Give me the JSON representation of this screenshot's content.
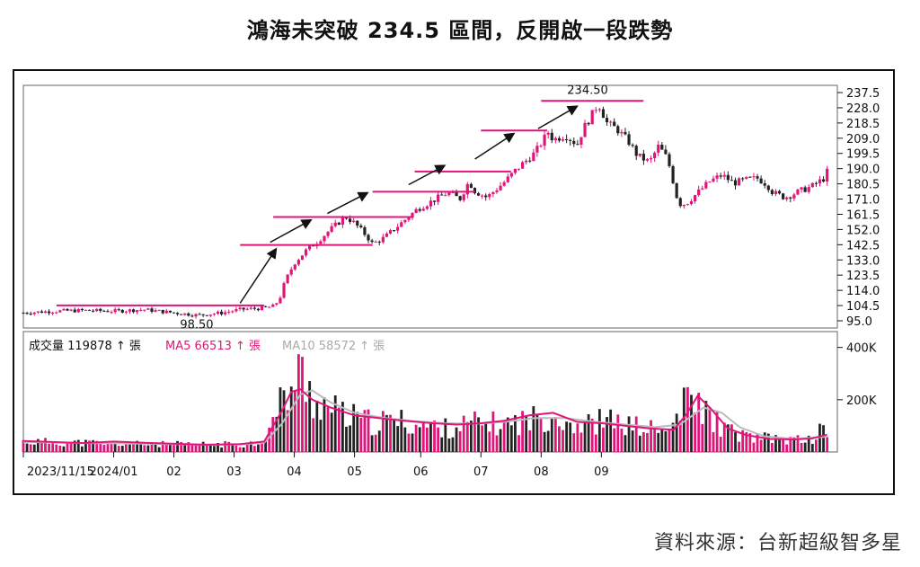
{
  "title": "鴻海未突破 234.5 區間，反開啟一段跌勢",
  "source": "資料來源：台新超級智多星",
  "colors": {
    "up": "#e0157a",
    "down": "#222222",
    "ma5": "#e0157a",
    "ma10": "#bbbbbb",
    "frame": "#111111"
  },
  "chart_data": {
    "type": "candlestick+bar",
    "price_panel": {
      "y_ticks": [
        237.5,
        228.0,
        218.5,
        209.0,
        199.5,
        190.0,
        180.5,
        171.0,
        161.5,
        152.0,
        142.5,
        133.0,
        123.5,
        114.0,
        104.5,
        95.0
      ],
      "ylim": [
        90.5,
        242
      ],
      "annotations": {
        "high_label": "234.50",
        "low_label": "98.50"
      },
      "ranges": [
        {
          "from_month": 0.55,
          "to_month": 4.0,
          "value": 104.6
        },
        {
          "from_month": 3.6,
          "to_month": 5.8,
          "value": 142.3
        },
        {
          "from_month": 4.15,
          "to_month": 6.45,
          "value": 159.8
        },
        {
          "from_month": 5.8,
          "to_month": 7.5,
          "value": 175.6
        },
        {
          "from_month": 6.5,
          "to_month": 8.1,
          "value": 188.2
        },
        {
          "from_month": 7.6,
          "to_month": 8.7,
          "value": 213.8
        },
        {
          "from_month": 8.6,
          "to_month": 10.3,
          "value": 232.3
        }
      ],
      "arrows": [
        {
          "from": [
            3.6,
            106
          ],
          "to": [
            4.2,
            140
          ]
        },
        {
          "from": [
            4.1,
            144
          ],
          "to": [
            4.78,
            158
          ]
        },
        {
          "from": [
            5.05,
            162
          ],
          "to": [
            5.72,
            175
          ]
        },
        {
          "from": [
            6.4,
            180
          ],
          "to": [
            7.0,
            192
          ]
        },
        {
          "from": [
            7.5,
            196
          ],
          "to": [
            8.15,
            212
          ]
        },
        {
          "from": [
            8.55,
            215
          ],
          "to": [
            9.2,
            229
          ]
        }
      ],
      "price_path": [
        [
          0,
          100
        ],
        [
          0.5,
          101
        ],
        [
          1.0,
          101.5
        ],
        [
          1.5,
          101
        ],
        [
          2.0,
          102
        ],
        [
          2.5,
          100
        ],
        [
          2.9,
          98.5
        ],
        [
          3.3,
          100
        ],
        [
          3.6,
          102
        ],
        [
          4.0,
          103
        ],
        [
          4.15,
          104
        ],
        [
          4.25,
          108
        ],
        [
          4.35,
          120
        ],
        [
          4.5,
          131
        ],
        [
          4.7,
          139
        ],
        [
          4.9,
          145
        ],
        [
          5.1,
          152
        ],
        [
          5.35,
          160
        ],
        [
          5.5,
          156
        ],
        [
          5.7,
          148
        ],
        [
          5.8,
          143
        ],
        [
          6.0,
          147
        ],
        [
          6.15,
          152
        ],
        [
          6.4,
          160
        ],
        [
          6.55,
          165
        ],
        [
          6.8,
          170
        ],
        [
          7.05,
          175
        ],
        [
          7.25,
          171
        ],
        [
          7.4,
          182
        ],
        [
          7.5,
          176
        ],
        [
          7.7,
          172
        ],
        [
          8.0,
          182
        ],
        [
          8.2,
          190
        ],
        [
          8.5,
          200
        ],
        [
          8.72,
          213
        ],
        [
          8.8,
          208
        ],
        [
          9.0,
          211
        ],
        [
          9.2,
          205
        ],
        [
          9.3,
          215
        ],
        [
          9.45,
          224
        ],
        [
          9.55,
          231
        ],
        [
          9.7,
          218
        ],
        [
          9.85,
          215
        ],
        [
          10.05,
          207
        ],
        [
          10.2,
          198
        ],
        [
          10.4,
          194
        ],
        [
          10.55,
          204
        ],
        [
          10.7,
          196
        ],
        [
          10.78,
          184
        ],
        [
          10.88,
          168
        ],
        [
          11.0,
          168
        ],
        [
          11.2,
          175
        ],
        [
          11.4,
          182
        ],
        [
          11.6,
          186
        ],
        [
          11.8,
          181
        ],
        [
          12.0,
          183
        ],
        [
          12.2,
          184
        ],
        [
          12.35,
          180
        ],
        [
          12.45,
          175
        ],
        [
          12.65,
          172
        ],
        [
          12.9,
          176
        ],
        [
          13.1,
          179
        ],
        [
          13.3,
          184
        ],
        [
          13.35,
          188
        ]
      ]
    },
    "volume_panel": {
      "legend": [
        {
          "label": "成交量 119878",
          "arrow": "↑",
          "unit": "張"
        },
        {
          "label": "MA5 66513",
          "arrow": "↑",
          "unit": "張"
        },
        {
          "label": "MA10 58572",
          "arrow": "↑",
          "unit": "張"
        }
      ],
      "y_ticks": [
        "400K",
        "200K"
      ],
      "y_tick_values": [
        400000,
        200000
      ],
      "ylim": [
        0,
        440000
      ],
      "volume_path": [
        [
          0,
          40000
        ],
        [
          1.0,
          35000
        ],
        [
          2.0,
          30000
        ],
        [
          3.0,
          28000
        ],
        [
          3.6,
          30000
        ],
        [
          3.9,
          35000
        ],
        [
          4.1,
          90000
        ],
        [
          4.3,
          200000
        ],
        [
          4.5,
          260000
        ],
        [
          4.6,
          300000
        ],
        [
          4.8,
          210000
        ],
        [
          5.0,
          180000
        ],
        [
          5.3,
          140000
        ],
        [
          5.8,
          110000
        ],
        [
          6.2,
          120000
        ],
        [
          6.6,
          100000
        ],
        [
          7.0,
          90000
        ],
        [
          7.5,
          110000
        ],
        [
          8.0,
          105000
        ],
        [
          8.3,
          120000
        ],
        [
          8.6,
          130000
        ],
        [
          8.8,
          150000
        ],
        [
          9.0,
          120000
        ],
        [
          9.3,
          100000
        ],
        [
          9.6,
          120000
        ],
        [
          9.9,
          110000
        ],
        [
          10.2,
          95000
        ],
        [
          10.5,
          85000
        ],
        [
          10.7,
          70000
        ],
        [
          10.9,
          160000
        ],
        [
          11.1,
          200000
        ],
        [
          11.2,
          180000
        ],
        [
          11.4,
          140000
        ],
        [
          11.7,
          80000
        ],
        [
          12.0,
          60000
        ],
        [
          12.4,
          50000
        ],
        [
          12.8,
          45000
        ],
        [
          13.1,
          50000
        ],
        [
          13.3,
          90000
        ]
      ],
      "ma5_path": [
        [
          0,
          42000
        ],
        [
          1.0,
          34000
        ],
        [
          1.5,
          40000
        ],
        [
          2.0,
          35000
        ],
        [
          3.0,
          28000
        ],
        [
          3.6,
          30000
        ],
        [
          4.0,
          40000
        ],
        [
          4.3,
          160000
        ],
        [
          4.45,
          230000
        ],
        [
          4.6,
          240000
        ],
        [
          4.8,
          200000
        ],
        [
          5.1,
          170000
        ],
        [
          5.5,
          140000
        ],
        [
          5.9,
          130000
        ],
        [
          6.3,
          120000
        ],
        [
          6.8,
          110000
        ],
        [
          7.2,
          105000
        ],
        [
          7.6,
          110000
        ],
        [
          8.0,
          120000
        ],
        [
          8.4,
          140000
        ],
        [
          8.8,
          150000
        ],
        [
          9.2,
          115000
        ],
        [
          9.6,
          110000
        ],
        [
          10.0,
          100000
        ],
        [
          10.4,
          90000
        ],
        [
          10.8,
          85000
        ],
        [
          11.0,
          140000
        ],
        [
          11.2,
          215000
        ],
        [
          11.4,
          170000
        ],
        [
          11.7,
          90000
        ],
        [
          12.0,
          65000
        ],
        [
          12.4,
          50000
        ],
        [
          12.8,
          48000
        ],
        [
          13.1,
          52000
        ],
        [
          13.35,
          66000
        ]
      ],
      "ma10_path": [
        [
          0,
          38000
        ],
        [
          1.0,
          34000
        ],
        [
          2.0,
          32000
        ],
        [
          3.0,
          28000
        ],
        [
          3.6,
          29000
        ],
        [
          4.0,
          35000
        ],
        [
          4.3,
          110000
        ],
        [
          4.6,
          220000
        ],
        [
          4.8,
          235000
        ],
        [
          5.1,
          190000
        ],
        [
          5.5,
          150000
        ],
        [
          6.0,
          130000
        ],
        [
          6.5,
          118000
        ],
        [
          7.0,
          110000
        ],
        [
          7.5,
          108000
        ],
        [
          8.0,
          115000
        ],
        [
          8.5,
          130000
        ],
        [
          9.0,
          130000
        ],
        [
          9.5,
          115000
        ],
        [
          10.0,
          105000
        ],
        [
          10.5,
          95000
        ],
        [
          10.9,
          105000
        ],
        [
          11.3,
          170000
        ],
        [
          11.6,
          150000
        ],
        [
          11.9,
          95000
        ],
        [
          12.3,
          60000
        ],
        [
          12.8,
          50000
        ],
        [
          13.1,
          55000
        ],
        [
          13.35,
          58572
        ]
      ]
    },
    "x_axis": {
      "tick_labels": [
        "2023/11/15",
        "2024/01",
        "02",
        "03",
        "04",
        "05",
        "06",
        "07",
        "08",
        "09"
      ],
      "tick_positions_months": [
        0,
        1.5,
        2.5,
        3.5,
        4.5,
        5.5,
        6.6,
        7.6,
        8.6,
        9.6
      ],
      "xlim_months": [
        0,
        13.4
      ]
    }
  }
}
